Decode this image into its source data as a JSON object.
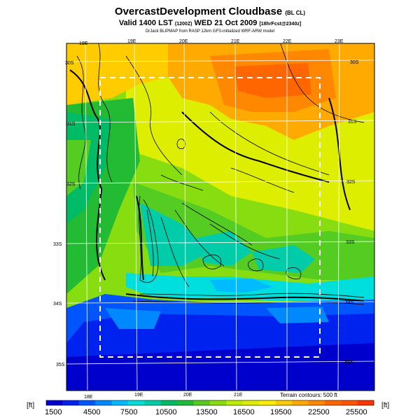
{
  "title": {
    "main": "OvercastDevelopment Cloudbase",
    "main_suffix": "(BL CL)",
    "line2_a": "Valid 1400 LST",
    "line2_b": "(1200Z)",
    "line2_c": "WED 21 Oct 2009",
    "line2_d": "[18hrFcst@2340z]",
    "line3": "DrJack BLIPMAP from RASP 12km GFS-initialized WRF-ARW model"
  },
  "map": {
    "lon_labels": [
      "18E",
      "19E",
      "20E",
      "21E",
      "22E",
      "23E"
    ],
    "lat_labels": [
      "30S",
      "31S",
      "32S",
      "33S",
      "34S",
      "35S"
    ],
    "terrain_note": "Terrain contours: 500 ft"
  },
  "colorbar": {
    "unit_left": "[ft]",
    "unit_right": "[ft]",
    "labels": [
      "1500",
      "4500",
      "7500",
      "10500",
      "13500",
      "16500",
      "19500",
      "22500",
      "25500"
    ],
    "colors": [
      "#0000cc",
      "#0022ee",
      "#0055ff",
      "#0088ff",
      "#00bbff",
      "#00dddd",
      "#00ccaa",
      "#00bb66",
      "#22bb33",
      "#55cc22",
      "#88dd11",
      "#bbee00",
      "#ddee00",
      "#ffee00",
      "#ffcc00",
      "#ffaa00",
      "#ff8800",
      "#ff6600",
      "#ff5500",
      "#ff3300"
    ]
  }
}
